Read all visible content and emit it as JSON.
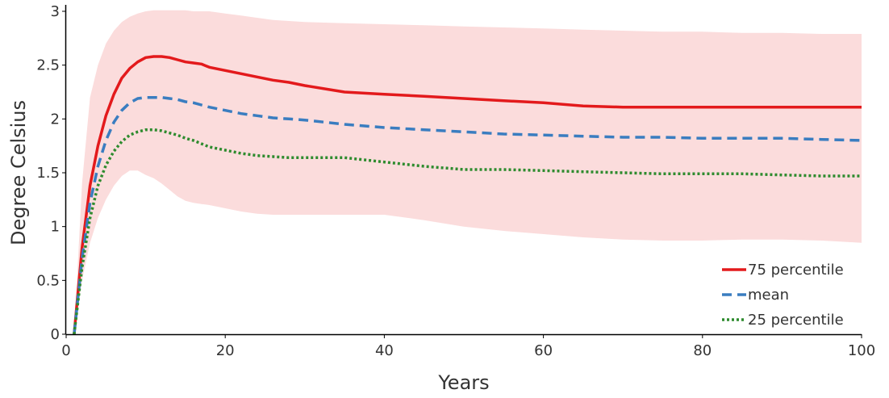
{
  "chart_data": {
    "type": "line",
    "title": "",
    "xlabel": "Years",
    "ylabel": "Degree Celsius",
    "xlim": [
      0,
      100
    ],
    "ylim": [
      0,
      3
    ],
    "xticks": [
      0,
      20,
      40,
      60,
      80,
      100
    ],
    "yticks": [
      0,
      0.5,
      1,
      1.5,
      2,
      2.5,
      3
    ],
    "ytick_labels": [
      "0",
      "0.5",
      "1",
      "1.5",
      "2",
      "2.5",
      "3"
    ],
    "grid": false,
    "legend_position": "bottom-right",
    "x": [
      1,
      2,
      3,
      4,
      5,
      6,
      7,
      8,
      9,
      10,
      11,
      12,
      13,
      14,
      15,
      16,
      17,
      18,
      20,
      22,
      24,
      26,
      28,
      30,
      35,
      40,
      45,
      50,
      55,
      60,
      65,
      70,
      75,
      80,
      85,
      90,
      95,
      100
    ],
    "series": [
      {
        "name": "75 percentile",
        "color": "#e31a1c",
        "dash": "solid",
        "values": [
          0,
          0.8,
          1.38,
          1.75,
          2.03,
          2.23,
          2.38,
          2.47,
          2.53,
          2.57,
          2.58,
          2.58,
          2.57,
          2.55,
          2.53,
          2.52,
          2.51,
          2.48,
          2.45,
          2.42,
          2.39,
          2.36,
          2.34,
          2.31,
          2.25,
          2.23,
          2.21,
          2.19,
          2.17,
          2.15,
          2.12,
          2.11,
          2.11,
          2.11,
          2.11,
          2.11,
          2.11,
          2.11
        ]
      },
      {
        "name": "mean",
        "color": "#3a7dc0",
        "dash": "dashed",
        "values": [
          0,
          0.7,
          1.22,
          1.56,
          1.8,
          1.97,
          2.08,
          2.15,
          2.19,
          2.2,
          2.2,
          2.2,
          2.19,
          2.18,
          2.16,
          2.15,
          2.13,
          2.11,
          2.08,
          2.05,
          2.03,
          2.01,
          2.0,
          1.99,
          1.95,
          1.92,
          1.9,
          1.88,
          1.86,
          1.85,
          1.84,
          1.83,
          1.83,
          1.82,
          1.82,
          1.82,
          1.81,
          1.8
        ]
      },
      {
        "name": "25 percentile",
        "color": "#2e8b2e",
        "dash": "dotted",
        "values": [
          0,
          0.62,
          1.08,
          1.38,
          1.57,
          1.7,
          1.79,
          1.85,
          1.88,
          1.9,
          1.9,
          1.89,
          1.87,
          1.85,
          1.82,
          1.8,
          1.77,
          1.74,
          1.71,
          1.68,
          1.66,
          1.65,
          1.64,
          1.64,
          1.64,
          1.6,
          1.56,
          1.53,
          1.53,
          1.52,
          1.51,
          1.5,
          1.49,
          1.49,
          1.49,
          1.48,
          1.47,
          1.47
        ]
      }
    ],
    "band": {
      "color": "#fbdcdc",
      "upper": [
        0,
        1.4,
        2.2,
        2.5,
        2.7,
        2.82,
        2.9,
        2.95,
        2.98,
        3.0,
        3.01,
        3.01,
        3.01,
        3.01,
        3.01,
        3.0,
        3.0,
        3.0,
        2.98,
        2.96,
        2.94,
        2.92,
        2.91,
        2.9,
        2.89,
        2.88,
        2.87,
        2.86,
        2.85,
        2.84,
        2.83,
        2.82,
        2.81,
        2.81,
        2.8,
        2.8,
        2.79,
        2.79
      ],
      "lower": [
        0,
        0.5,
        0.85,
        1.08,
        1.25,
        1.38,
        1.47,
        1.52,
        1.52,
        1.48,
        1.45,
        1.4,
        1.34,
        1.28,
        1.24,
        1.22,
        1.21,
        1.2,
        1.17,
        1.14,
        1.12,
        1.11,
        1.11,
        1.11,
        1.11,
        1.11,
        1.06,
        1.0,
        0.96,
        0.93,
        0.9,
        0.88,
        0.87,
        0.87,
        0.88,
        0.88,
        0.87,
        0.85
      ]
    }
  }
}
